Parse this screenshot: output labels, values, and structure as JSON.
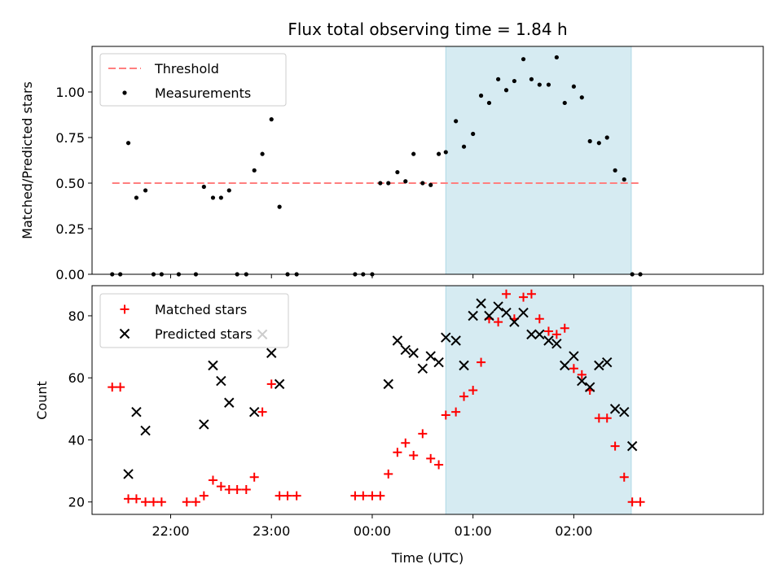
{
  "chart_data": {
    "title": "Flux total observing time = 1.84 h",
    "xlabel": "Time (UTC)",
    "x_ticks": [
      "22:00",
      "23:00",
      "00:00",
      "01:00",
      "02:00"
    ],
    "x_tick_hours": [
      22,
      23,
      24,
      25,
      26
    ],
    "xlim_hours": [
      21.22,
      27.88
    ],
    "shaded_interval_hours": [
      24.73,
      26.57
    ],
    "shade_color": "#add8e6",
    "top": {
      "type": "scatter",
      "ylabel": "Matched/Predicted stars",
      "ylim": [
        0,
        1.25
      ],
      "yticks": [
        "0.00",
        "0.25",
        "0.50",
        "0.75",
        "1.00"
      ],
      "ytick_values": [
        0,
        0.25,
        0.5,
        0.75,
        1.0
      ],
      "threshold": {
        "name": "Threshold",
        "value": 0.5,
        "x_start": 21.42,
        "x_end": 26.65,
        "color": "#ff7f7f"
      },
      "series": {
        "name": "Measurements",
        "color": "#000000",
        "x": [
          21.42,
          21.5,
          21.58,
          21.66,
          21.75,
          21.83,
          21.91,
          22.08,
          22.25,
          22.33,
          22.42,
          22.5,
          22.58,
          22.66,
          22.75,
          22.83,
          22.91,
          23.0,
          23.08,
          23.16,
          23.25,
          23.83,
          23.91,
          24.0,
          24.08,
          24.16,
          24.25,
          24.33,
          24.41,
          24.5,
          24.58,
          24.66,
          24.73,
          24.83,
          24.91,
          25.0,
          25.08,
          25.16,
          25.25,
          25.33,
          25.41,
          25.5,
          25.58,
          25.66,
          25.75,
          25.83,
          25.91,
          26.0,
          26.08,
          26.16,
          26.25,
          26.33,
          26.41,
          26.5,
          26.58,
          26.66
        ],
        "y": [
          0,
          0,
          0.72,
          0.42,
          0.46,
          0,
          0,
          0,
          0,
          0.48,
          0.42,
          0.42,
          0.46,
          0,
          0,
          0.57,
          0.66,
          0.85,
          0.37,
          0,
          0,
          0,
          0,
          0,
          0.5,
          0.5,
          0.56,
          0.51,
          0.66,
          0.5,
          0.49,
          0.66,
          0.67,
          0.84,
          0.7,
          0.77,
          0.98,
          0.94,
          1.07,
          1.01,
          1.06,
          1.18,
          1.07,
          1.04,
          1.04,
          1.19,
          0.94,
          1.03,
          0.97,
          0.73,
          0.72,
          0.75,
          0.57,
          0.52,
          0,
          0
        ]
      }
    },
    "bottom": {
      "type": "scatter",
      "ylabel": "Count",
      "ylim": [
        16,
        89.7
      ],
      "yticks": [
        "20",
        "40",
        "60",
        "80"
      ],
      "ytick_values": [
        20,
        40,
        60,
        80
      ],
      "series": [
        {
          "name": "Matched stars",
          "marker": "+",
          "color": "#ff0000",
          "x": [
            21.42,
            21.5,
            21.58,
            21.66,
            21.75,
            21.83,
            21.91,
            22.16,
            22.25,
            22.33,
            22.42,
            22.5,
            22.58,
            22.66,
            22.75,
            22.83,
            22.91,
            23.0,
            23.08,
            23.16,
            23.25,
            23.83,
            23.91,
            24.0,
            24.08,
            24.16,
            24.25,
            24.33,
            24.41,
            24.5,
            24.58,
            24.66,
            24.73,
            24.83,
            24.91,
            25.0,
            25.08,
            25.16,
            25.25,
            25.33,
            25.41,
            25.5,
            25.58,
            25.66,
            25.75,
            25.83,
            25.91,
            26.0,
            26.08,
            26.16,
            26.25,
            26.33,
            26.41,
            26.5,
            26.58,
            26.66
          ],
          "y": [
            57,
            57,
            21,
            21,
            20,
            20,
            20,
            20,
            20,
            22,
            27,
            25,
            24,
            24,
            24,
            28,
            49,
            58,
            22,
            22,
            22,
            22,
            22,
            22,
            22,
            29,
            36,
            39,
            35,
            42,
            34,
            32,
            48,
            49,
            54,
            56,
            65,
            79,
            78,
            87,
            79,
            86,
            87,
            79,
            75,
            74,
            76,
            63,
            61,
            56,
            47,
            47,
            38,
            28,
            20,
            20
          ]
        },
        {
          "name": "Predicted stars",
          "marker": "x",
          "color": "#000000",
          "x": [
            21.58,
            21.66,
            21.75,
            22.33,
            22.42,
            22.5,
            22.58,
            22.83,
            22.91,
            23.0,
            23.08,
            24.16,
            24.25,
            24.33,
            24.41,
            24.5,
            24.58,
            24.66,
            24.73,
            24.83,
            24.91,
            25.0,
            25.08,
            25.16,
            25.25,
            25.33,
            25.41,
            25.5,
            25.58,
            25.66,
            25.75,
            25.83,
            25.91,
            26.0,
            26.08,
            26.16,
            26.25,
            26.33,
            26.41,
            26.5,
            26.58
          ],
          "y": [
            29,
            49,
            43,
            45,
            64,
            59,
            52,
            49,
            74,
            68,
            58,
            58,
            72,
            69,
            68,
            63,
            67,
            65,
            73,
            72,
            64,
            80,
            84,
            80,
            83,
            81,
            78,
            81,
            74,
            74,
            72,
            71,
            64,
            67,
            59,
            57,
            64,
            65,
            50,
            49,
            38
          ]
        }
      ]
    }
  }
}
